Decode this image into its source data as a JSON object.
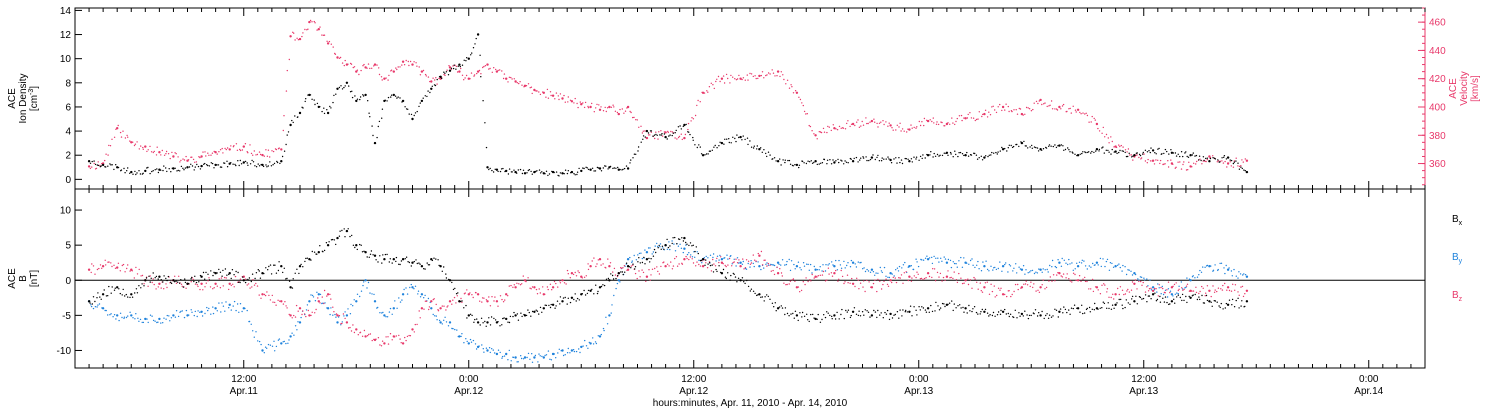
{
  "colors": {
    "black": "#000000",
    "red": "#e8386a",
    "blue": "#1e82dc"
  },
  "chart_data": [
    {
      "type": "scatter",
      "panel": "top",
      "ylabel_lines": [
        "ACE",
        "Ion Density",
        "[cm^-3]"
      ],
      "y2label_lines": [
        "ACE",
        "Velocity",
        "[km/s]"
      ],
      "ylim": [
        -0.8,
        14.2
      ],
      "y2lim": [
        342,
        470
      ],
      "yticks": [
        0,
        2,
        4,
        6,
        8,
        10,
        12,
        14
      ],
      "y2ticks": [
        360,
        380,
        400,
        420,
        440,
        460
      ],
      "series": [
        {
          "color_key": "black",
          "axis": "left",
          "x": [
            3,
            6,
            9,
            12,
            15,
            18,
            21,
            24,
            27,
            30,
            33,
            36,
            40,
            44,
            46,
            48,
            50,
            52,
            54,
            56,
            58,
            60,
            62,
            64,
            66,
            68,
            70,
            72,
            74,
            76,
            78,
            80,
            82,
            84,
            86,
            88,
            90,
            92,
            94,
            96,
            98,
            100,
            102,
            104,
            106,
            108,
            110,
            112,
            114,
            116,
            118,
            122,
            126,
            130,
            134,
            138,
            142,
            146,
            150,
            154,
            158,
            162,
            166,
            170,
            174,
            178,
            182,
            186,
            190,
            194,
            198,
            202,
            206,
            210,
            214,
            218,
            222,
            226,
            230,
            234,
            238,
            242,
            246,
            250
          ],
          "y": [
            1.5,
            1.2,
            1.0,
            0.6,
            0.7,
            0.8,
            0.9,
            1.0,
            1.1,
            1.2,
            1.3,
            1.4,
            1.2,
            1.5,
            4.5,
            5.5,
            7.0,
            6.0,
            5.5,
            7.5,
            8.0,
            6.5,
            7.0,
            3.0,
            6.5,
            7.0,
            6.5,
            5.0,
            6.5,
            7.5,
            8.5,
            9.0,
            9.5,
            10.0,
            12.0,
            1.0,
            0.8,
            0.7,
            0.6,
            0.5,
            0.6,
            0.5,
            0.6,
            0.5,
            0.6,
            0.7,
            0.8,
            0.9,
            1.0,
            0.8,
            0.9,
            4.0,
            3.5,
            4.5,
            2.0,
            3.0,
            3.5,
            2.5,
            1.5,
            1.2,
            1.5,
            1.4,
            1.5,
            1.8,
            1.6,
            1.5,
            2.0,
            2.2,
            2.0,
            1.8,
            2.5,
            3.0,
            2.5,
            2.8,
            2.0,
            2.5,
            2.3,
            2.0,
            2.4,
            2.2,
            2.0,
            1.5,
            1.8,
            0.6
          ]
        },
        {
          "color_key": "red",
          "axis": "right",
          "x": [
            3,
            6,
            9,
            12,
            15,
            18,
            21,
            24,
            27,
            30,
            33,
            36,
            40,
            44,
            46,
            48,
            50,
            52,
            54,
            56,
            58,
            60,
            62,
            64,
            66,
            68,
            70,
            72,
            74,
            76,
            78,
            80,
            82,
            84,
            86,
            88,
            90,
            92,
            94,
            96,
            98,
            100,
            102,
            104,
            106,
            108,
            110,
            112,
            114,
            116,
            118,
            122,
            126,
            130,
            134,
            138,
            142,
            146,
            150,
            154,
            158,
            162,
            166,
            170,
            174,
            178,
            182,
            186,
            190,
            194,
            198,
            202,
            206,
            210,
            214,
            218,
            222,
            226,
            230,
            234,
            238,
            242,
            246,
            250
          ],
          "y": [
            358,
            360,
            385,
            375,
            372,
            368,
            365,
            362,
            365,
            368,
            370,
            372,
            366,
            370,
            450,
            448,
            460,
            455,
            445,
            435,
            430,
            425,
            428,
            430,
            420,
            425,
            432,
            430,
            425,
            418,
            420,
            428,
            425,
            420,
            425,
            430,
            425,
            420,
            418,
            415,
            412,
            410,
            408,
            406,
            404,
            402,
            400,
            398,
            400,
            395,
            400,
            378,
            382,
            378,
            410,
            420,
            420,
            422,
            425,
            410,
            380,
            385,
            388,
            390,
            387,
            384,
            390,
            388,
            392,
            395,
            400,
            395,
            405,
            400,
            398,
            388,
            372,
            365,
            362,
            360,
            358,
            365,
            360,
            362
          ]
        }
      ]
    },
    {
      "type": "scatter",
      "panel": "bottom",
      "ylabel_lines": [
        "ACE",
        "B",
        "[nT]"
      ],
      "ylim": [
        -12.5,
        13
      ],
      "yticks": [
        -10,
        -5,
        0,
        5,
        10
      ],
      "legend": [
        {
          "label": "B",
          "sub": "x",
          "color_key": "black"
        },
        {
          "label": "B",
          "sub": "y",
          "color_key": "blue"
        },
        {
          "label": "B",
          "sub": "z",
          "color_key": "red"
        }
      ],
      "series": [
        {
          "color_key": "black",
          "x": [
            3,
            6,
            9,
            12,
            15,
            18,
            21,
            24,
            27,
            30,
            33,
            36,
            40,
            44,
            46,
            48,
            50,
            52,
            54,
            56,
            58,
            60,
            62,
            64,
            66,
            68,
            70,
            72,
            74,
            76,
            78,
            80,
            82,
            84,
            86,
            88,
            90,
            92,
            94,
            96,
            98,
            100,
            102,
            104,
            106,
            108,
            110,
            112,
            114,
            116,
            118,
            122,
            126,
            130,
            134,
            138,
            142,
            146,
            150,
            154,
            158,
            162,
            166,
            170,
            174,
            178,
            182,
            186,
            190,
            194,
            198,
            202,
            206,
            210,
            214,
            218,
            222,
            226,
            230,
            234,
            238,
            242,
            246,
            250
          ],
          "y": [
            -3.0,
            -2.0,
            -1.0,
            -2.0,
            0.0,
            0.5,
            0.0,
            -0.5,
            0.5,
            1.0,
            1.0,
            0.0,
            1.0,
            2.0,
            -1.0,
            2.0,
            3.0,
            4.0,
            5.0,
            6.0,
            7.0,
            5.0,
            4.0,
            3.5,
            3.0,
            3.0,
            3.0,
            2.5,
            2.0,
            3.0,
            2.0,
            0.0,
            -3.0,
            -5.0,
            -6.0,
            -6.0,
            -6.0,
            -5.5,
            -5.0,
            -5.0,
            -4.5,
            -4.0,
            -3.5,
            -3.0,
            -2.5,
            -2.0,
            -1.5,
            -1.0,
            0.0,
            1.0,
            2.0,
            3.0,
            5.0,
            6.0,
            3.0,
            1.0,
            0.0,
            -2.0,
            -4.0,
            -5.0,
            -5.5,
            -5.0,
            -4.5,
            -5.0,
            -4.8,
            -4.5,
            -4.0,
            -3.5,
            -4.0,
            -4.5,
            -4.5,
            -4.8,
            -5.0,
            -4.5,
            -4.0,
            -4.0,
            -3.5,
            -3.0,
            -2.0,
            -3.0,
            -2.5,
            -3.0,
            -3.5,
            -3.0
          ]
        },
        {
          "color_key": "blue",
          "x": [
            3,
            6,
            9,
            12,
            15,
            18,
            21,
            24,
            27,
            30,
            33,
            36,
            40,
            44,
            46,
            48,
            50,
            52,
            54,
            56,
            58,
            60,
            62,
            64,
            66,
            68,
            70,
            72,
            74,
            76,
            78,
            80,
            82,
            84,
            86,
            88,
            90,
            92,
            94,
            96,
            98,
            100,
            102,
            104,
            106,
            108,
            110,
            112,
            114,
            116,
            118,
            122,
            126,
            130,
            134,
            138,
            142,
            146,
            150,
            154,
            158,
            162,
            166,
            170,
            174,
            178,
            182,
            186,
            190,
            194,
            198,
            202,
            206,
            210,
            214,
            218,
            222,
            226,
            230,
            234,
            238,
            242,
            246,
            250
          ],
          "y": [
            -3.0,
            -4.0,
            -5.0,
            -5.0,
            -5.5,
            -5.5,
            -5.0,
            -5.0,
            -4.5,
            -4.0,
            -3.5,
            -4.0,
            -10.0,
            -9.0,
            -8.0,
            -6.0,
            -3.0,
            -2.0,
            -4.0,
            -6.0,
            -5.0,
            -3.0,
            0.0,
            -3.0,
            -5.0,
            -4.0,
            -2.0,
            -1.0,
            -2.0,
            -4.0,
            -6.0,
            -6.0,
            -8.0,
            -9.0,
            -9.5,
            -10.0,
            -10.5,
            -10.5,
            -11.0,
            -11.0,
            -11.0,
            -11.0,
            -10.5,
            -10.0,
            -10.0,
            -9.5,
            -9.0,
            -8.0,
            -5.0,
            0.0,
            3.0,
            4.0,
            5.0,
            4.5,
            3.0,
            3.0,
            2.5,
            2.0,
            2.5,
            2.0,
            1.5,
            2.0,
            2.5,
            1.5,
            1.0,
            2.0,
            3.0,
            2.5,
            2.5,
            2.0,
            2.0,
            1.5,
            1.5,
            2.5,
            2.0,
            2.5,
            2.0,
            1.0,
            -1.0,
            -2.0,
            0.0,
            2.0,
            1.5,
            0.5
          ]
        },
        {
          "color_key": "red",
          "x": [
            3,
            6,
            9,
            12,
            15,
            18,
            21,
            24,
            27,
            30,
            33,
            36,
            40,
            44,
            46,
            48,
            50,
            52,
            54,
            56,
            58,
            60,
            62,
            64,
            66,
            68,
            70,
            72,
            74,
            76,
            78,
            80,
            82,
            84,
            86,
            88,
            90,
            92,
            94,
            96,
            98,
            100,
            102,
            104,
            106,
            108,
            110,
            112,
            114,
            116,
            118,
            122,
            126,
            130,
            134,
            138,
            142,
            146,
            150,
            154,
            158,
            162,
            166,
            170,
            174,
            178,
            182,
            186,
            190,
            194,
            198,
            202,
            206,
            210,
            214,
            218,
            222,
            226,
            230,
            234,
            238,
            242,
            246,
            250
          ],
          "y": [
            1.5,
            2.0,
            1.8,
            1.5,
            0.0,
            -0.5,
            0.0,
            -0.5,
            -0.5,
            -0.5,
            -0.5,
            0.5,
            -2.0,
            -3.0,
            -5.0,
            -4.0,
            -5.0,
            -3.0,
            -2.0,
            -5.0,
            -6.0,
            -7.0,
            -8.0,
            -8.5,
            -9.0,
            -8.0,
            -9.0,
            -7.0,
            -4.0,
            -3.0,
            -4.0,
            -3.0,
            -3.0,
            -2.0,
            -2.0,
            -3.0,
            -3.0,
            -2.0,
            -1.0,
            0.0,
            -1.0,
            -2.0,
            -1.0,
            0.0,
            1.0,
            0.5,
            2.0,
            3.0,
            2.0,
            1.0,
            1.5,
            0.5,
            2.0,
            3.0,
            2.0,
            2.5,
            2.0,
            3.5,
            1.0,
            -1.0,
            0.5,
            1.0,
            -0.5,
            -1.0,
            0.0,
            0.5,
            1.0,
            0.5,
            0.0,
            -1.0,
            -2.0,
            -1.0,
            -1.0,
            1.0,
            0.0,
            -1.0,
            -2.0,
            -0.5,
            -1.5,
            -1.0,
            -1.5,
            -1.5,
            -1.0,
            -1.5
          ]
        }
      ]
    }
  ],
  "x_axis": {
    "xlim": [
      0,
      288
    ],
    "ticks": [
      {
        "x": 36,
        "time": "12:00",
        "date": "Apr.11"
      },
      {
        "x": 84,
        "time": "0:00",
        "date": "Apr.12"
      },
      {
        "x": 132,
        "time": "12:00",
        "date": "Apr.12"
      },
      {
        "x": 180,
        "time": "0:00",
        "date": "Apr.13"
      },
      {
        "x": 228,
        "time": "12:00",
        "date": "Apr.13"
      },
      {
        "x": 276,
        "time": "0:00",
        "date": "Apr.14"
      }
    ],
    "label": "hours:minutes, Apr. 11, 2010 - Apr. 14, 2010"
  }
}
